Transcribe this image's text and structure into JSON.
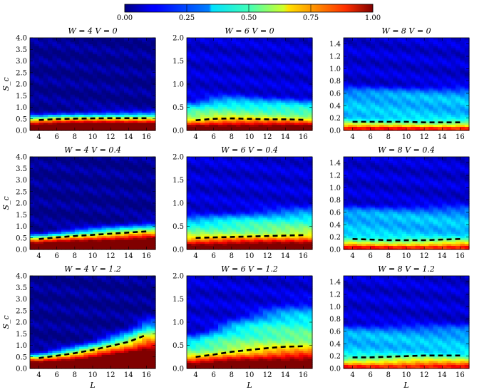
{
  "chart_data": {
    "type": "heatmap",
    "colormap": "jet",
    "colorbar": {
      "ticks": [
        "0.00",
        "0.25",
        "0.50",
        "0.75",
        "1.00"
      ],
      "range": [
        0,
        1
      ]
    },
    "x_ticks": [
      "4",
      "6",
      "8",
      "10",
      "12",
      "14",
      "16"
    ],
    "xlim": [
      3,
      17
    ],
    "xlabel": "L",
    "ylabel": "S_c",
    "column_ylims": [
      [
        0,
        4
      ],
      [
        0,
        2
      ],
      [
        0,
        1.5
      ]
    ],
    "column_yticks": [
      [
        "0.0",
        "0.5",
        "1.0",
        "1.5",
        "2.0",
        "2.5",
        "3.0",
        "3.5",
        "4.0"
      ],
      [
        "0.0",
        "0.5",
        "1.0",
        "1.5",
        "2.0"
      ],
      [
        "0.0",
        "0.2",
        "0.4",
        "0.6",
        "0.8",
        "1.0",
        "1.2",
        "1.4"
      ]
    ],
    "panels": [
      {
        "title": "W = 4 V = 0",
        "W": 4,
        "V": 0,
        "L": [
          4,
          6,
          8,
          10,
          12,
          14,
          16
        ],
        "mean_Sc": [
          0.45,
          0.49,
          0.51,
          0.52,
          0.53,
          0.53,
          0.53
        ]
      },
      {
        "title": "W = 6 V = 0",
        "W": 6,
        "V": 0,
        "L": [
          4,
          6,
          8,
          10,
          12,
          14,
          16
        ],
        "mean_Sc": [
          0.22,
          0.25,
          0.26,
          0.25,
          0.24,
          0.24,
          0.23
        ]
      },
      {
        "title": "W = 8 V = 0",
        "W": 8,
        "V": 0,
        "L": [
          4,
          6,
          8,
          10,
          12,
          14,
          16
        ],
        "mean_Sc": [
          0.14,
          0.14,
          0.14,
          0.14,
          0.13,
          0.13,
          0.13
        ]
      },
      {
        "title": "W = 4 V = 0.4",
        "W": 4,
        "V": 0.4,
        "L": [
          4,
          6,
          8,
          10,
          12,
          14,
          16
        ],
        "mean_Sc": [
          0.45,
          0.52,
          0.58,
          0.63,
          0.68,
          0.73,
          0.78
        ]
      },
      {
        "title": "W = 6 V = 0.4",
        "W": 6,
        "V": 0.4,
        "L": [
          4,
          6,
          8,
          10,
          12,
          14,
          16
        ],
        "mean_Sc": [
          0.25,
          0.26,
          0.27,
          0.28,
          0.29,
          0.3,
          0.31
        ]
      },
      {
        "title": "W = 8 V = 0.4",
        "W": 8,
        "V": 0.4,
        "L": [
          4,
          6,
          8,
          10,
          12,
          14,
          16
        ],
        "mean_Sc": [
          0.17,
          0.16,
          0.15,
          0.15,
          0.15,
          0.16,
          0.17
        ]
      },
      {
        "title": "W = 4 V = 1.2",
        "W": 4,
        "V": 1.2,
        "L": [
          4,
          6,
          8,
          10,
          12,
          14,
          16
        ],
        "mean_Sc": [
          0.45,
          0.55,
          0.66,
          0.8,
          0.97,
          1.15,
          1.45
        ]
      },
      {
        "title": "W = 6 V = 1.2",
        "W": 6,
        "V": 1.2,
        "L": [
          4,
          6,
          8,
          10,
          12,
          14,
          16
        ],
        "mean_Sc": [
          0.25,
          0.3,
          0.36,
          0.4,
          0.44,
          0.47,
          0.48
        ]
      },
      {
        "title": "W = 8 V = 1.2",
        "W": 8,
        "V": 1.2,
        "L": [
          4,
          6,
          8,
          10,
          12,
          14,
          16
        ],
        "mean_Sc": [
          0.18,
          0.18,
          0.19,
          0.2,
          0.21,
          0.21,
          0.21
        ]
      }
    ]
  }
}
